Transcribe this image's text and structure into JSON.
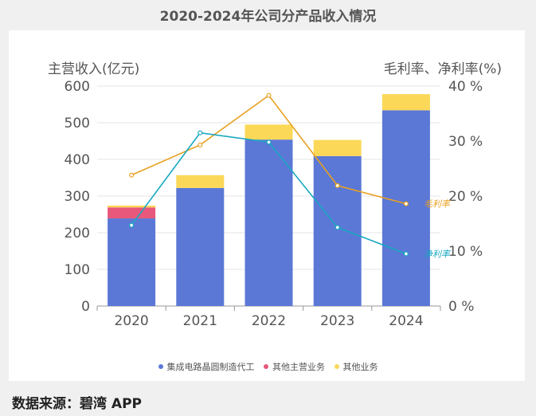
{
  "chart_data": {
    "type": "bar",
    "title": "2020-2024年公司分产品收入情况",
    "categories": [
      "2020",
      "2021",
      "2022",
      "2023",
      "2024"
    ],
    "ylabel": "主营收入(亿元)",
    "y2label": "毛利率、净利率(%)",
    "ylim": [
      0,
      600
    ],
    "y2lim": [
      0,
      40
    ],
    "yticks": [
      0,
      100,
      200,
      300,
      400,
      500,
      600
    ],
    "y2ticks": [
      "0 %",
      "10 %",
      "20 %",
      "30 %",
      "40 %"
    ],
    "y2tick_values": [
      0,
      10,
      20,
      30,
      40
    ],
    "stacked": true,
    "series": [
      {
        "name": "集成电路晶圆制造代工",
        "kind": "bar",
        "color": "#5b78d6",
        "values": [
          239,
          322,
          454,
          409,
          534
        ]
      },
      {
        "name": "其他主营业务",
        "kind": "bar",
        "color": "#e8587a",
        "values": [
          30,
          0,
          0,
          0,
          0
        ]
      },
      {
        "name": "其他业务",
        "kind": "bar",
        "color": "#fcd858",
        "values": [
          5,
          35,
          41,
          44,
          44
        ]
      },
      {
        "name": "毛利率",
        "kind": "line",
        "axis": "right",
        "color": "#e8a020",
        "values": [
          23.8,
          29.3,
          38.3,
          21.9,
          18.6
        ]
      },
      {
        "name": "净利率",
        "kind": "line",
        "axis": "right",
        "color": "#18a8c0",
        "values": [
          14.7,
          31.5,
          29.8,
          14.3,
          9.5
        ]
      }
    ],
    "line_labels": {
      "gross": "毛利率",
      "net": "净利率"
    },
    "legend": [
      "集成电路晶圆制造代工",
      "其他主营业务",
      "其他业务"
    ],
    "legend_position": "bottom"
  },
  "source": "数据来源：碧湾 APP"
}
